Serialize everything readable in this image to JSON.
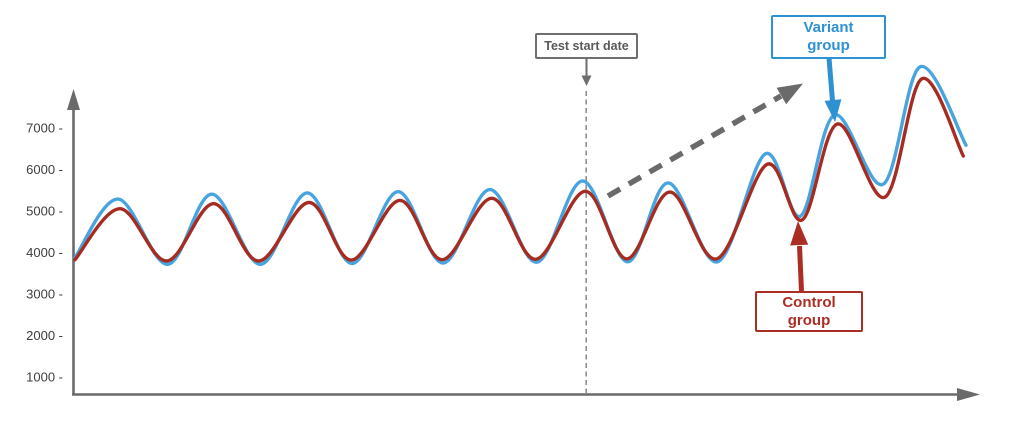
{
  "chart_data": {
    "type": "line",
    "title": "",
    "description": "A/B test illustration: two seasonal wave series diverge upward after a test start date",
    "x_axis": {
      "label": "",
      "range": [
        0,
        100
      ],
      "tick_labels": [],
      "unit": "time (no visible tick labels)"
    },
    "y_axis": {
      "tick_labels": [
        "7000 -",
        "6000 -",
        "5000 -",
        "4000 -",
        "3000 -",
        "2000 -",
        "1000 -"
      ],
      "tick_values": [
        7000,
        6000,
        5000,
        4000,
        3000,
        2000,
        1000
      ],
      "range_shown": [
        1000,
        7000
      ]
    },
    "grid": "off",
    "legend": "callout boxes instead of legend",
    "series": [
      {
        "name": "Variant group",
        "color": "#47a4de",
        "points": [
          [
            0,
            3900
          ],
          [
            4.8,
            5310
          ],
          [
            10.3,
            3740
          ],
          [
            15.2,
            5430
          ],
          [
            20.6,
            3740
          ],
          [
            25.8,
            5460
          ],
          [
            30.8,
            3760
          ],
          [
            35.9,
            5490
          ],
          [
            40.9,
            3770
          ],
          [
            46.1,
            5540
          ],
          [
            51.3,
            3790
          ],
          [
            56.4,
            5750
          ],
          [
            61.4,
            3800
          ],
          [
            65.9,
            5700
          ],
          [
            71.4,
            3800
          ],
          [
            76.7,
            6400
          ],
          [
            80.6,
            4900
          ],
          [
            84.4,
            7340
          ],
          [
            89.8,
            5670
          ],
          [
            93.9,
            8500
          ],
          [
            99.0,
            6610
          ]
        ]
      },
      {
        "name": "Control group",
        "color": "#a62c21",
        "points": [
          [
            0,
            3850
          ],
          [
            5.0,
            5080
          ],
          [
            10.2,
            3820
          ],
          [
            15.4,
            5200
          ],
          [
            20.4,
            3820
          ],
          [
            26.0,
            5230
          ],
          [
            30.7,
            3840
          ],
          [
            36.1,
            5280
          ],
          [
            40.8,
            3850
          ],
          [
            46.3,
            5330
          ],
          [
            51.2,
            3860
          ],
          [
            56.7,
            5500
          ],
          [
            61.3,
            3870
          ],
          [
            66.1,
            5480
          ],
          [
            71.3,
            3870
          ],
          [
            76.9,
            6150
          ],
          [
            80.8,
            4810
          ],
          [
            84.7,
            7120
          ],
          [
            90.0,
            5360
          ],
          [
            94.1,
            8210
          ],
          [
            98.7,
            6350
          ]
        ]
      }
    ],
    "test_start_line": {
      "label": "Test start date",
      "x": 56.8,
      "style": "dashed vertical line with down arrow from label box"
    },
    "trend_arrow": {
      "style": "dashed gray arrow pointing up-right",
      "from": {
        "x": 59.2,
        "value": 5380
      },
      "to": {
        "x": 80.8,
        "value": 8090
      }
    },
    "callouts": {
      "variant": {
        "line1": "Variant",
        "line2": "group",
        "color": "#2e91d2",
        "points_to": {
          "x": 84.4,
          "value": 7340
        }
      },
      "control": {
        "line1": "Control",
        "line2": "group",
        "color": "#aa2e24",
        "points_to": {
          "x": 80.8,
          "value": 4810
        }
      }
    },
    "colors": {
      "variant_line": "#47a4de",
      "control_line": "#a62c21",
      "axis": "#6a6a6a",
      "test_date_dashed_line": "#8f8f8f",
      "trend_arrow": "#6a6a6a",
      "background": "#ffffff"
    }
  }
}
